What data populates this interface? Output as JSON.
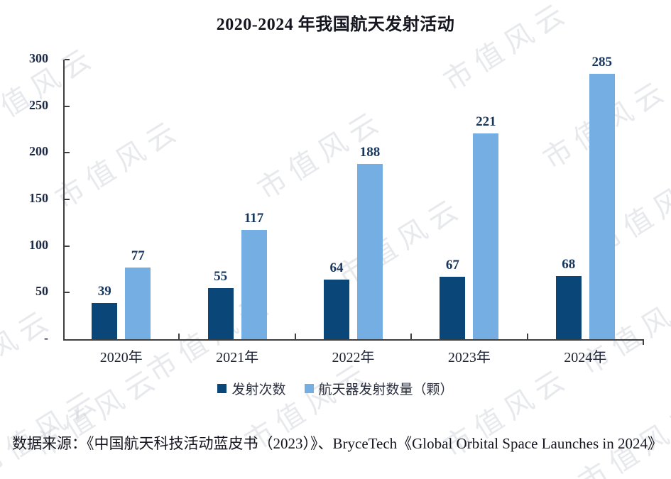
{
  "chart_data": {
    "type": "bar",
    "title": "2020-2024 年我国航天发射活动",
    "categories": [
      "2020年",
      "2021年",
      "2022年",
      "2023年",
      "2024年"
    ],
    "series": [
      {
        "name": "发射次数",
        "values": [
          39,
          55,
          64,
          67,
          68
        ],
        "color": "#0A4678"
      },
      {
        "name": "航天器发射数量（颗）",
        "values": [
          77,
          117,
          188,
          221,
          285
        ],
        "color": "#74AEE3"
      }
    ],
    "ylim": [
      0,
      300
    ],
    "ytick_interval": 50,
    "ytick_labels": [
      "-",
      "50",
      "100",
      "150",
      "200",
      "250",
      "300"
    ],
    "grid": false,
    "data_labels": true,
    "legend_position": "bottom",
    "axis_color": "#3f3f3f"
  },
  "source_note": "数据来源：《中国航天科技活动蓝皮书（2023）》、BryceTech《Global Orbital Space Launches in 2024》",
  "watermark": {
    "text": "市值风云"
  }
}
